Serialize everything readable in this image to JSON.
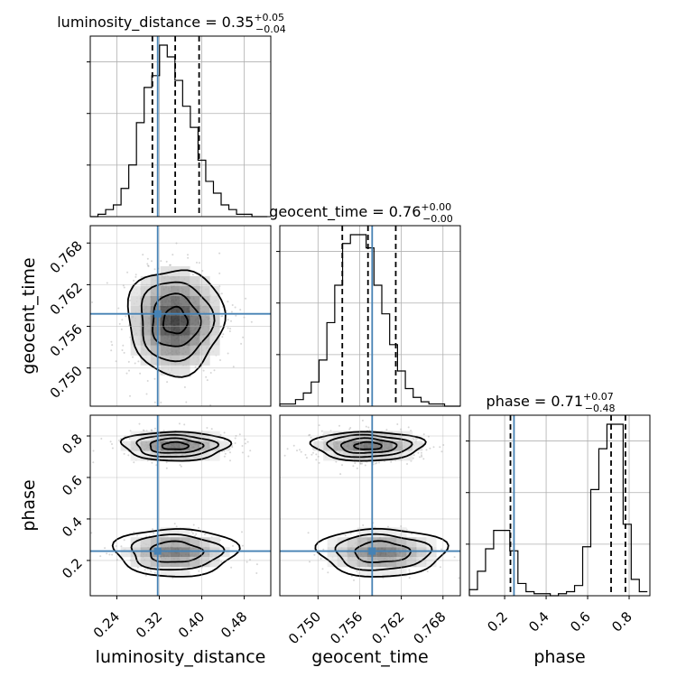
{
  "chart_data": {
    "type": "corner",
    "parameters": [
      "luminosity_distance",
      "geocent_time",
      "phase"
    ],
    "titles": [
      {
        "text": "luminosity_distance = 0.35",
        "plus": "+0.05",
        "minus": "−0.04"
      },
      {
        "text": "geocent_time = 0.76",
        "plus": "+0.00",
        "minus": "−0.00"
      },
      {
        "text": "phase = 0.71",
        "plus": "+0.07",
        "minus": "−0.48"
      }
    ],
    "ranges": [
      [
        0.19,
        0.53
      ],
      [
        0.7445,
        0.7705
      ],
      [
        0.03,
        0.9
      ]
    ],
    "ticks": [
      [
        "0.24",
        "0.32",
        "0.40",
        "0.48"
      ],
      [
        "0.750",
        "0.756",
        "0.762",
        "0.768"
      ],
      [
        "0.2",
        "0.4",
        "0.6",
        "0.8"
      ]
    ],
    "truths": [
      0.317,
      0.7578,
      0.245
    ],
    "quantiles": [
      [
        0.307,
        0.35,
        0.395
      ],
      [
        0.7535,
        0.7572,
        0.7612
      ],
      [
        0.228,
        0.713,
        0.782
      ]
    ],
    "histograms": [
      {
        "bin_edges_start": 0.19,
        "bin_width": 0.0145,
        "counts": [
          0,
          1,
          3,
          5,
          12,
          22,
          40,
          55,
          60,
          73,
          68,
          58,
          47,
          38,
          24,
          15,
          10,
          5,
          3,
          1,
          1,
          0,
          0
        ]
      },
      {
        "bin_edges_start": 0.7445,
        "bin_width": 0.00113,
        "counts": [
          1,
          1,
          3,
          6,
          11,
          21,
          38,
          55,
          74,
          78,
          78,
          72,
          55,
          42,
          28,
          16,
          8,
          4,
          2,
          1,
          1,
          0,
          0
        ]
      },
      {
        "bin_edges_start": 0.03,
        "bin_width": 0.039,
        "counts": [
          3,
          12,
          23,
          32,
          32,
          22,
          6,
          2,
          1,
          1,
          0,
          1,
          2,
          5,
          24,
          52,
          72,
          84,
          84,
          35,
          8,
          2
        ]
      }
    ],
    "density_2d": [
      {
        "pair": [
          "luminosity_distance",
          "geocent_time"
        ],
        "modes": [
          {
            "x": 0.35,
            "y": 0.7568,
            "sx": 0.045,
            "sy": 0.0038,
            "weight": 1.0
          }
        ]
      },
      {
        "pair": [
          "luminosity_distance",
          "phase"
        ],
        "modes": [
          {
            "x": 0.35,
            "y": 0.752,
            "sx": 0.05,
            "sy": 0.035,
            "weight": 0.7
          },
          {
            "x": 0.35,
            "y": 0.24,
            "sx": 0.05,
            "sy": 0.05,
            "weight": 0.3
          }
        ]
      },
      {
        "pair": [
          "geocent_time",
          "phase"
        ],
        "modes": [
          {
            "x": 0.7572,
            "y": 0.752,
            "sx": 0.004,
            "sy": 0.035,
            "weight": 0.7
          },
          {
            "x": 0.7592,
            "y": 0.24,
            "sx": 0.004,
            "sy": 0.05,
            "weight": 0.3
          }
        ]
      }
    ],
    "grid": true
  }
}
